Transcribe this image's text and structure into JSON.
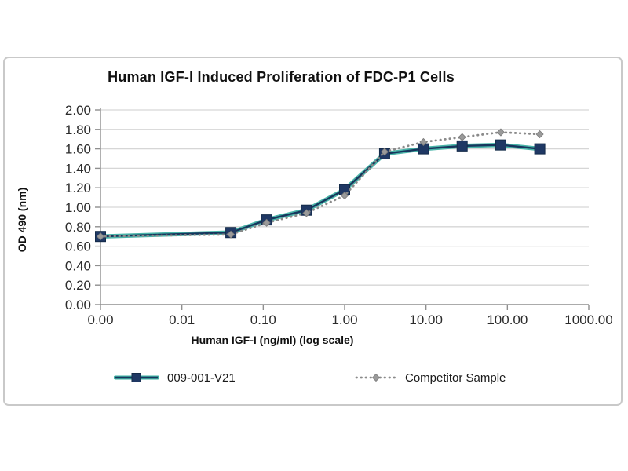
{
  "chart_data": {
    "type": "line",
    "title": "Human IGF-I Induced Proliferation of FDC-P1 Cells",
    "xlabel": "Human IGF-I (ng/ml) (log scale)",
    "ylabel": "OD 490 (nm)",
    "x_scale": "log",
    "xlim": [
      0.001,
      1000
    ],
    "ylim": [
      0,
      2.0
    ],
    "y_tick_step": 0.2,
    "grid": "horizontal",
    "legend_position": "bottom",
    "x_tick_labels": [
      "0.00",
      "0.01",
      "0.10",
      "1.00",
      "10.00",
      "100.00",
      "1000.00"
    ],
    "x_tick_values": [
      0.001,
      0.01,
      0.1,
      1,
      10,
      100,
      1000
    ],
    "y_tick_labels": [
      "0.00",
      "0.20",
      "0.40",
      "0.60",
      "0.80",
      "1.00",
      "1.20",
      "1.40",
      "1.60",
      "1.80",
      "2.00"
    ],
    "y_tick_values": [
      0,
      0.2,
      0.4,
      0.6,
      0.8,
      1.0,
      1.2,
      1.4,
      1.6,
      1.8,
      2.0
    ],
    "doses_ng_ml": [
      0,
      0.04,
      0.11,
      0.34,
      1.0,
      3.1,
      9.3,
      27.8,
      83,
      250
    ],
    "series": [
      {
        "name": "009-001-V21",
        "style": "solid",
        "marker": "square",
        "line_color": "#17365d",
        "marker_color": "#1f3864",
        "glow_color": "#3fb0a3",
        "values": [
          0.7,
          0.74,
          0.87,
          0.97,
          1.18,
          1.55,
          1.6,
          1.63,
          1.64,
          1.6
        ]
      },
      {
        "name": "Competitor Sample",
        "style": "dotted",
        "marker": "diamond",
        "line_color": "#8a8a8a",
        "marker_color": "#9a9a9a",
        "values": [
          0.7,
          0.72,
          0.84,
          0.94,
          1.12,
          1.57,
          1.67,
          1.72,
          1.77,
          1.75
        ]
      }
    ],
    "colors": {
      "grid": "#d6d6d6",
      "axis": "#8f8f8f",
      "tick_label": "#2b2b2b",
      "panel_border": "#c9c9c9",
      "background": "#ffffff"
    }
  }
}
